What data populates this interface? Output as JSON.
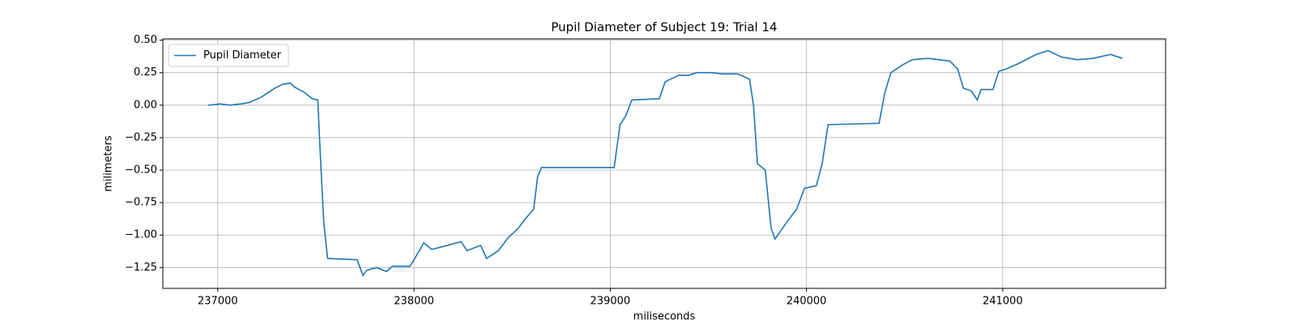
{
  "chart_data": {
    "type": "line",
    "title": "Pupil Diameter of Subject 19: Trial 14",
    "xlabel": "miliseconds",
    "ylabel": "milimeters",
    "x": [
      236950,
      236990,
      237010,
      237060,
      237120,
      237160,
      237220,
      237290,
      237330,
      237370,
      237390,
      237440,
      237480,
      237510,
      237520,
      237540,
      237560,
      237710,
      237740,
      237760,
      237810,
      237860,
      237890,
      237980,
      238000,
      238050,
      238090,
      238170,
      238240,
      238270,
      238320,
      238340,
      238370,
      238430,
      238480,
      238530,
      238570,
      238610,
      238630,
      238650,
      239020,
      239050,
      239080,
      239110,
      239250,
      239280,
      239350,
      239400,
      239440,
      239520,
      239570,
      239650,
      239710,
      239730,
      239750,
      239790,
      239820,
      239840,
      239900,
      239950,
      239990,
      240050,
      240080,
      240110,
      240370,
      240400,
      240430,
      240490,
      240540,
      240620,
      240730,
      240770,
      240800,
      240840,
      240870,
      240890,
      240950,
      240980,
      241020,
      241080,
      241170,
      241230,
      241300,
      241380,
      241460,
      241550,
      241610
    ],
    "series": [
      {
        "name": "Pupil Diameter",
        "color": "#1f77b4",
        "values": [
          0.0,
          0.005,
          0.01,
          0.0,
          0.01,
          0.02,
          0.06,
          0.13,
          0.16,
          0.17,
          0.14,
          0.1,
          0.05,
          0.04,
          -0.3,
          -0.9,
          -1.18,
          -1.19,
          -1.31,
          -1.27,
          -1.25,
          -1.28,
          -1.24,
          -1.24,
          -1.19,
          -1.06,
          -1.11,
          -1.08,
          -1.05,
          -1.12,
          -1.09,
          -1.08,
          -1.18,
          -1.12,
          -1.02,
          -0.95,
          -0.87,
          -0.8,
          -0.55,
          -0.48,
          -0.48,
          -0.15,
          -0.08,
          0.04,
          0.05,
          0.18,
          0.23,
          0.23,
          0.25,
          0.25,
          0.24,
          0.24,
          0.2,
          0.0,
          -0.45,
          -0.5,
          -0.95,
          -1.03,
          -0.9,
          -0.8,
          -0.64,
          -0.62,
          -0.45,
          -0.15,
          -0.14,
          0.1,
          0.25,
          0.31,
          0.35,
          0.36,
          0.34,
          0.28,
          0.13,
          0.11,
          0.04,
          0.12,
          0.12,
          0.26,
          0.28,
          0.32,
          0.39,
          0.42,
          0.37,
          0.35,
          0.36,
          0.39,
          0.36
        ]
      }
    ],
    "xlim": [
      236720,
      241830
    ],
    "ylim": [
      -1.41,
      0.51
    ],
    "xticks": [
      237000,
      238000,
      239000,
      240000,
      241000
    ],
    "yticks": [
      {
        "value": 0.5,
        "label": "0.50"
      },
      {
        "value": 0.25,
        "label": "0.25"
      },
      {
        "value": 0,
        "label": "0.00"
      },
      {
        "value": -0.25,
        "label": "−0.25"
      },
      {
        "value": -0.5,
        "label": "−0.50"
      },
      {
        "value": -0.75,
        "label": "−0.75"
      },
      {
        "value": -1,
        "label": "−1.00"
      },
      {
        "value": -1.25,
        "label": "−1.25"
      }
    ],
    "grid": true,
    "legend": "upper-left"
  }
}
